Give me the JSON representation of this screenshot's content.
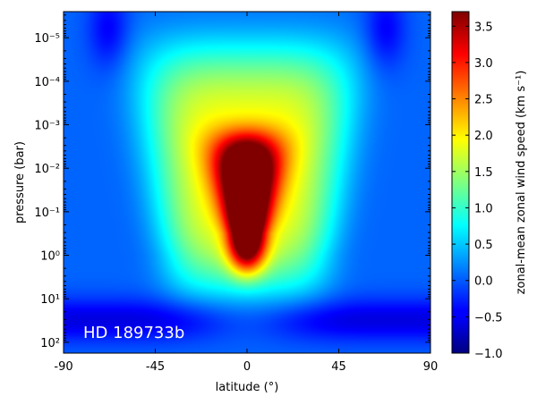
{
  "chart_data": {
    "type": "heatmap",
    "annotation": "HD 189733b",
    "xlabel": "latitude (°)",
    "ylabel": "pressure (bar)",
    "x_ticks": [
      {
        "value": -90,
        "label": "-90"
      },
      {
        "value": -45,
        "label": "-45"
      },
      {
        "value": 0,
        "label": "0"
      },
      {
        "value": 45,
        "label": "45"
      },
      {
        "value": 90,
        "label": "90"
      }
    ],
    "y_ticks": [
      {
        "exp": -5,
        "label": "10⁻⁵"
      },
      {
        "exp": -4,
        "label": "10⁻⁴"
      },
      {
        "exp": -3,
        "label": "10⁻³"
      },
      {
        "exp": -2,
        "label": "10⁻²"
      },
      {
        "exp": -1,
        "label": "10⁻¹"
      },
      {
        "exp": 0,
        "label": "10⁰"
      },
      {
        "exp": 1,
        "label": "10¹"
      },
      {
        "exp": 2,
        "label": "10²"
      }
    ],
    "xlim": [
      -90,
      90
    ],
    "ylim_log10_bar": [
      2.25,
      -5.6
    ],
    "y_scale": "log (inverted)",
    "colorbar": {
      "label": "zonal-mean zonal wind speed (km s⁻¹)",
      "colormap": "jet",
      "vmin": -1.0,
      "vmax": 3.7,
      "ticks": [
        {
          "value": 3.5,
          "label": "3.5"
        },
        {
          "value": 3.0,
          "label": "3.0"
        },
        {
          "value": 2.5,
          "label": "2.5"
        },
        {
          "value": 2.0,
          "label": "2.0"
        },
        {
          "value": 1.5,
          "label": "1.5"
        },
        {
          "value": 1.0,
          "label": "1.0"
        },
        {
          "value": 0.5,
          "label": "0.5"
        },
        {
          "value": 0.0,
          "label": "0.0"
        },
        {
          "value": -0.5,
          "label": "−0.5"
        },
        {
          "value": -1.0,
          "label": "−1.0"
        }
      ]
    },
    "features": {
      "equatorial_jet_peak_kms": 3.7,
      "equatorial_jet_core_pressure_range_bar": [
        0.003,
        0.5
      ],
      "high_latitude_retrograde_min_kms": -0.5,
      "deep_retrograde_min_kms": -0.6
    }
  }
}
